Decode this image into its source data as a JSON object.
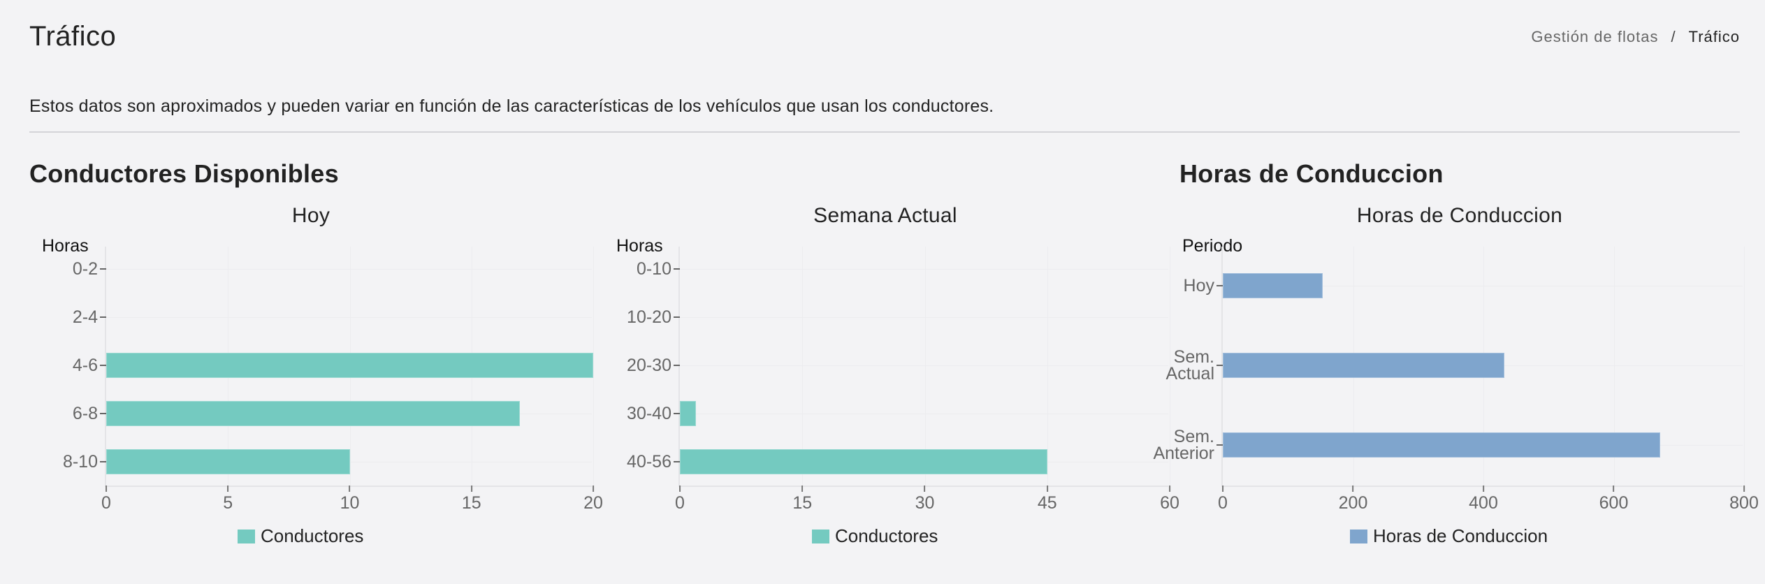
{
  "header": {
    "title": "Tráfico",
    "breadcrumb": [
      "Gestión de flotas",
      "/",
      "Tráfico"
    ]
  },
  "notice": "Estos datos son aproximados y pueden variar en función de las características de los vehículos que usan los conductores.",
  "sections": {
    "conductores": {
      "title": "Conductores Disponibles"
    },
    "horas": {
      "title": "Horas de Conduccion"
    }
  },
  "colors": {
    "teal": "#74cac0",
    "blue": "#7fa5cd",
    "background": "#f3f3f5"
  },
  "chart_data": [
    {
      "type": "bar",
      "orientation": "horizontal",
      "title": "Hoy",
      "ylabel": "Horas",
      "xlabel": "",
      "categories": [
        "0-2",
        "2-4",
        "4-6",
        "6-8",
        "8-10"
      ],
      "series": [
        {
          "name": "Conductores",
          "values": [
            0,
            0,
            20,
            17,
            10
          ],
          "color": "#74cac0"
        }
      ],
      "xlim": [
        0,
        20
      ],
      "xticks": [
        "0",
        "5",
        "10",
        "15",
        "20"
      ],
      "legend": "bottom",
      "grid": true
    },
    {
      "type": "bar",
      "orientation": "horizontal",
      "title": "Semana Actual",
      "ylabel": "Horas",
      "xlabel": "",
      "categories": [
        "0-10",
        "10-20",
        "20-30",
        "30-40",
        "40-56"
      ],
      "series": [
        {
          "name": "Conductores",
          "values": [
            0,
            0,
            0,
            2,
            45
          ],
          "color": "#74cac0"
        }
      ],
      "xlim": [
        0,
        60
      ],
      "xticks": [
        "0",
        "15",
        "30",
        "45",
        "60"
      ],
      "legend": "bottom",
      "grid": true
    },
    {
      "type": "bar",
      "orientation": "horizontal",
      "title": "Horas de Conduccion",
      "ylabel": "Periodo",
      "xlabel": "",
      "categories": [
        "Hoy",
        "Sem. Actual",
        "Sem. Anterior"
      ],
      "category_lines": [
        [
          "Hoy"
        ],
        [
          "Sem.",
          "Actual"
        ],
        [
          "Sem.",
          "Anterior"
        ]
      ],
      "series": [
        {
          "name": "Horas de Conduccion",
          "values": [
            153,
            432,
            671
          ],
          "color": "#7fa5cd"
        }
      ],
      "xlim": [
        0,
        800
      ],
      "xticks": [
        "0",
        "200",
        "400",
        "600",
        "800"
      ],
      "legend": "bottom",
      "grid": true
    }
  ]
}
